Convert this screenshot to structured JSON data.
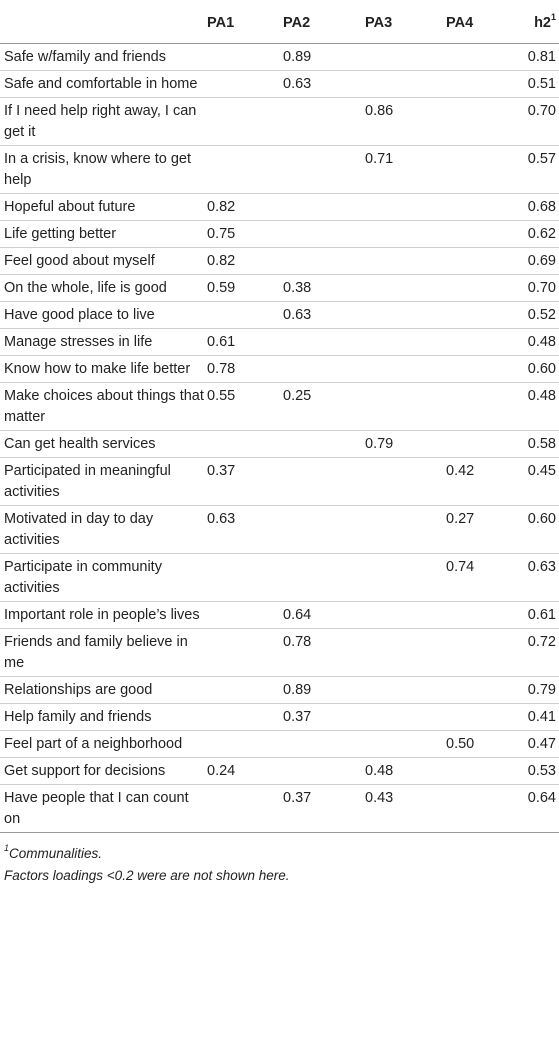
{
  "table": {
    "headers": [
      "",
      "PA1",
      "PA2",
      "PA3",
      "PA4",
      "h2"
    ],
    "h2_sup": "1",
    "rows": [
      {
        "label": "Safe w/family and friends",
        "pa1": "",
        "pa2": "0.89",
        "pa3": "",
        "pa4": "",
        "h2": "0.81"
      },
      {
        "label": "Safe and comfortable in home",
        "pa1": "",
        "pa2": "0.63",
        "pa3": "",
        "pa4": "",
        "h2": "0.51"
      },
      {
        "label": "If I need help right away, I can get it",
        "pa1": "",
        "pa2": "",
        "pa3": "0.86",
        "pa4": "",
        "h2": "0.70"
      },
      {
        "label": "In a crisis, know where to get help",
        "pa1": "",
        "pa2": "",
        "pa3": "0.71",
        "pa4": "",
        "h2": "0.57"
      },
      {
        "label": "Hopeful about future",
        "pa1": "0.82",
        "pa2": "",
        "pa3": "",
        "pa4": "",
        "h2": "0.68"
      },
      {
        "label": "Life getting better",
        "pa1": "0.75",
        "pa2": "",
        "pa3": "",
        "pa4": "",
        "h2": "0.62"
      },
      {
        "label": "Feel good about myself",
        "pa1": "0.82",
        "pa2": "",
        "pa3": "",
        "pa4": "",
        "h2": "0.69"
      },
      {
        "label": "On the whole, life is good",
        "pa1": "0.59",
        "pa2": "0.38",
        "pa3": "",
        "pa4": "",
        "h2": "0.70"
      },
      {
        "label": "Have good place to live",
        "pa1": "",
        "pa2": "0.63",
        "pa3": "",
        "pa4": "",
        "h2": "0.52"
      },
      {
        "label": "Manage stresses in life",
        "pa1": "0.61",
        "pa2": "",
        "pa3": "",
        "pa4": "",
        "h2": "0.48"
      },
      {
        "label": "Know how to make life better",
        "pa1": "0.78",
        "pa2": "",
        "pa3": "",
        "pa4": "",
        "h2": "0.60"
      },
      {
        "label": "Make choices about things that matter",
        "pa1": "0.55",
        "pa2": "0.25",
        "pa3": "",
        "pa4": "",
        "h2": "0.48"
      },
      {
        "label": "Can get health services",
        "pa1": "",
        "pa2": "",
        "pa3": "0.79",
        "pa4": "",
        "h2": "0.58"
      },
      {
        "label": "Participated in meaningful activities",
        "pa1": "0.37",
        "pa2": "",
        "pa3": "",
        "pa4": "0.42",
        "h2": "0.45"
      },
      {
        "label": "Motivated in day to day activities",
        "pa1": "0.63",
        "pa2": "",
        "pa3": "",
        "pa4": "0.27",
        "h2": "0.60"
      },
      {
        "label": "Participate in community activities",
        "pa1": "",
        "pa2": "",
        "pa3": "",
        "pa4": "0.74",
        "h2": "0.63"
      },
      {
        "label": "Important role in people’s lives",
        "pa1": "",
        "pa2": "0.64",
        "pa3": "",
        "pa4": "",
        "h2": "0.61"
      },
      {
        "label": "Friends and family believe in me",
        "pa1": "",
        "pa2": "0.78",
        "pa3": "",
        "pa4": "",
        "h2": "0.72"
      },
      {
        "label": "Relationships are good",
        "pa1": "",
        "pa2": "0.89",
        "pa3": "",
        "pa4": "",
        "h2": "0.79"
      },
      {
        "label": "Help family and friends",
        "pa1": "",
        "pa2": "0.37",
        "pa3": "",
        "pa4": "",
        "h2": "0.41"
      },
      {
        "label": "Feel part of a neighborhood",
        "pa1": "",
        "pa2": "",
        "pa3": "",
        "pa4": "0.50",
        "h2": "0.47"
      },
      {
        "label": "Get support for decisions",
        "pa1": "0.24",
        "pa2": "",
        "pa3": "0.48",
        "pa4": "",
        "h2": "0.53"
      },
      {
        "label": "Have people that I can count on",
        "pa1": "",
        "pa2": "0.37",
        "pa3": "0.43",
        "pa4": "",
        "h2": "0.64"
      }
    ]
  },
  "footnotes": {
    "note1_sup": "1",
    "note1_text": "Communalities.",
    "note2_text": "Factors loadings <0.2 were are not shown here."
  }
}
